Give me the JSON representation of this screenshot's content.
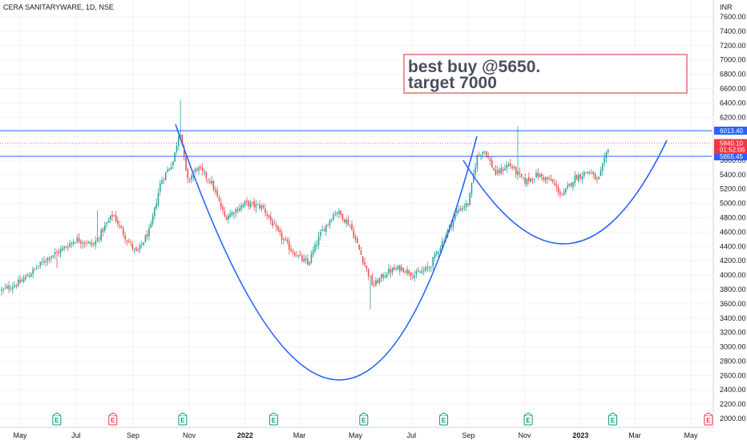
{
  "chart_data": {
    "type": "candlestick",
    "title": "CERA SANITARYWARE, 1D, NSE",
    "currency": "INR",
    "ylim": [
      1900,
      7800
    ],
    "y_ticks": [
      2000,
      2200,
      2400,
      2600,
      2800,
      3000,
      3200,
      3400,
      3600,
      3800,
      4000,
      4200,
      4400,
      4600,
      4800,
      5000,
      5200,
      5400,
      5600,
      5800,
      6000,
      6200,
      6400,
      6600,
      6800,
      7000,
      7200,
      7400,
      7600
    ],
    "y_tick_labels": [
      "2000.00",
      "2200.00",
      "2400.00",
      "2600.00",
      "2800.00",
      "3000.00",
      "3200.00",
      "3400.00",
      "3600.00",
      "3800.00",
      "4000.00",
      "4200.00",
      "4400.00",
      "4600.00",
      "4800.00",
      "5000.00",
      "5200.00",
      "5400.00",
      "5600.00",
      "5800.00",
      "6000.00",
      "6200.00",
      "6400.00",
      "6600.00",
      "6800.00",
      "7000.00",
      "7200.00",
      "7400.00",
      "7600.00"
    ],
    "x_ticks": [
      "May",
      "Jul",
      "Sep",
      "Nov",
      "2022",
      "Mar",
      "May",
      "Jul",
      "Sep",
      "Nov",
      "2023",
      "Mar",
      "May"
    ],
    "price_key_points": [
      [
        "2021-04-10",
        3780
      ],
      [
        "2021-05-01",
        3900
      ],
      [
        "2021-06-01",
        4250
      ],
      [
        "2021-06-15",
        4350
      ],
      [
        "2021-07-01",
        4500
      ],
      [
        "2021-07-20",
        4420
      ],
      [
        "2021-08-10",
        4850
      ],
      [
        "2021-08-25",
        4500
      ],
      [
        "2021-09-05",
        4300
      ],
      [
        "2021-09-20",
        4650
      ],
      [
        "2021-10-01",
        5300
      ],
      [
        "2021-10-15",
        5600
      ],
      [
        "2021-10-22",
        6050
      ],
      [
        "2021-10-30",
        5300
      ],
      [
        "2021-11-10",
        5500
      ],
      [
        "2021-11-25",
        5300
      ],
      [
        "2021-12-10",
        4800
      ],
      [
        "2022-01-01",
        5000
      ],
      [
        "2022-01-20",
        4950
      ],
      [
        "2022-02-05",
        4600
      ],
      [
        "2022-02-20",
        4350
      ],
      [
        "2022-03-10",
        4150
      ],
      [
        "2022-03-25",
        4600
      ],
      [
        "2022-04-10",
        4900
      ],
      [
        "2022-04-25",
        4700
      ],
      [
        "2022-05-08",
        4250
      ],
      [
        "2022-05-20",
        3850
      ],
      [
        "2022-06-05",
        4050
      ],
      [
        "2022-06-20",
        4100
      ],
      [
        "2022-07-05",
        4000
      ],
      [
        "2022-07-20",
        4100
      ],
      [
        "2022-08-05",
        4500
      ],
      [
        "2022-08-20",
        4900
      ],
      [
        "2022-09-01",
        5000
      ],
      [
        "2022-09-10",
        5650
      ],
      [
        "2022-09-18",
        5750
      ],
      [
        "2022-10-01",
        5400
      ],
      [
        "2022-10-15",
        5550
      ],
      [
        "2022-11-01",
        5300
      ],
      [
        "2022-11-15",
        5400
      ],
      [
        "2022-12-01",
        5300
      ],
      [
        "2022-12-12",
        5100
      ],
      [
        "2022-12-25",
        5350
      ],
      [
        "2023-01-10",
        5450
      ],
      [
        "2023-01-20",
        5300
      ],
      [
        "2023-01-27",
        5600
      ],
      [
        "2023-02-01",
        5840
      ]
    ],
    "horizontal_lines": [
      {
        "price": 6013.4,
        "label": "6013.40",
        "color": "#2962ff"
      },
      {
        "price": 5655.45,
        "label": "5655.45",
        "color": "#2962ff"
      },
      {
        "price": 5840.1,
        "label": "5840.10",
        "sublabel": "01:52:06",
        "color": "#f23645"
      }
    ],
    "earnings_markers": [
      {
        "date": "2021-06-10",
        "color": "green"
      },
      {
        "date": "2021-08-10",
        "color": "red"
      },
      {
        "date": "2021-10-25",
        "color": "green"
      },
      {
        "date": "2022-02-01",
        "color": "green"
      },
      {
        "date": "2022-05-10",
        "color": "green"
      },
      {
        "date": "2022-08-05",
        "color": "green"
      },
      {
        "date": "2022-11-05",
        "color": "green"
      },
      {
        "date": "2023-02-05",
        "color": "green"
      },
      {
        "date": "2023-05-20",
        "color": "red"
      }
    ],
    "annotation": {
      "line1": "best buy @5650.",
      "line2": "target 7000"
    },
    "colors": {
      "up": "#26a69a",
      "down": "#ef5350",
      "drawing": "#2962ff",
      "box": "#e05a5a",
      "grid": "#f0f3fa"
    }
  }
}
